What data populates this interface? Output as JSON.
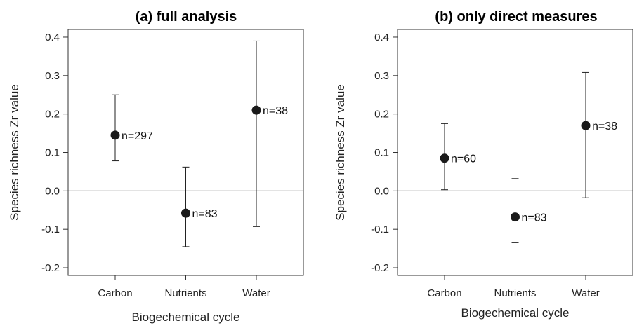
{
  "chart_data": [
    {
      "type": "scatter",
      "title": "(a) full analysis",
      "xlabel": "Biogechemical cycle",
      "ylabel": "Species richness Zr value",
      "categories": [
        "Carbon",
        "Nutrients",
        "Water"
      ],
      "ylim": [
        -0.22,
        0.42
      ],
      "yticks": [
        -0.2,
        -0.1,
        0.0,
        0.1,
        0.2,
        0.3,
        0.4
      ],
      "yticklabels": [
        "-0.2",
        "-0.1",
        "0.0",
        "0.1",
        "0.2",
        "0.3",
        "0.4"
      ],
      "reference_line": 0.0,
      "points": [
        {
          "category": "Carbon",
          "value": 0.145,
          "lower": 0.078,
          "upper": 0.25,
          "label": "n=297"
        },
        {
          "category": "Nutrients",
          "value": -0.058,
          "lower": -0.145,
          "upper": 0.062,
          "label": "n=83"
        },
        {
          "category": "Water",
          "value": 0.21,
          "lower": -0.093,
          "upper": 0.39,
          "label": "n=38"
        }
      ]
    },
    {
      "type": "scatter",
      "title": "(b) only direct measures",
      "xlabel": "Biogechemical cycle",
      "ylabel": "Species richness Zr value",
      "categories": [
        "Carbon",
        "Nutrients",
        "Water"
      ],
      "ylim": [
        -0.22,
        0.42
      ],
      "yticks": [
        -0.2,
        -0.1,
        0.0,
        0.1,
        0.2,
        0.3,
        0.4
      ],
      "yticklabels": [
        "-0.2",
        "-0.1",
        "0.0",
        "0.1",
        "0.2",
        "0.3",
        "0.4"
      ],
      "reference_line": 0.0,
      "points": [
        {
          "category": "Carbon",
          "value": 0.085,
          "lower": 0.003,
          "upper": 0.175,
          "label": "n=60"
        },
        {
          "category": "Nutrients",
          "value": -0.068,
          "lower": -0.135,
          "upper": 0.032,
          "label": "n=83"
        },
        {
          "category": "Water",
          "value": 0.17,
          "lower": -0.018,
          "upper": 0.308,
          "label": "n=38"
        }
      ]
    }
  ]
}
